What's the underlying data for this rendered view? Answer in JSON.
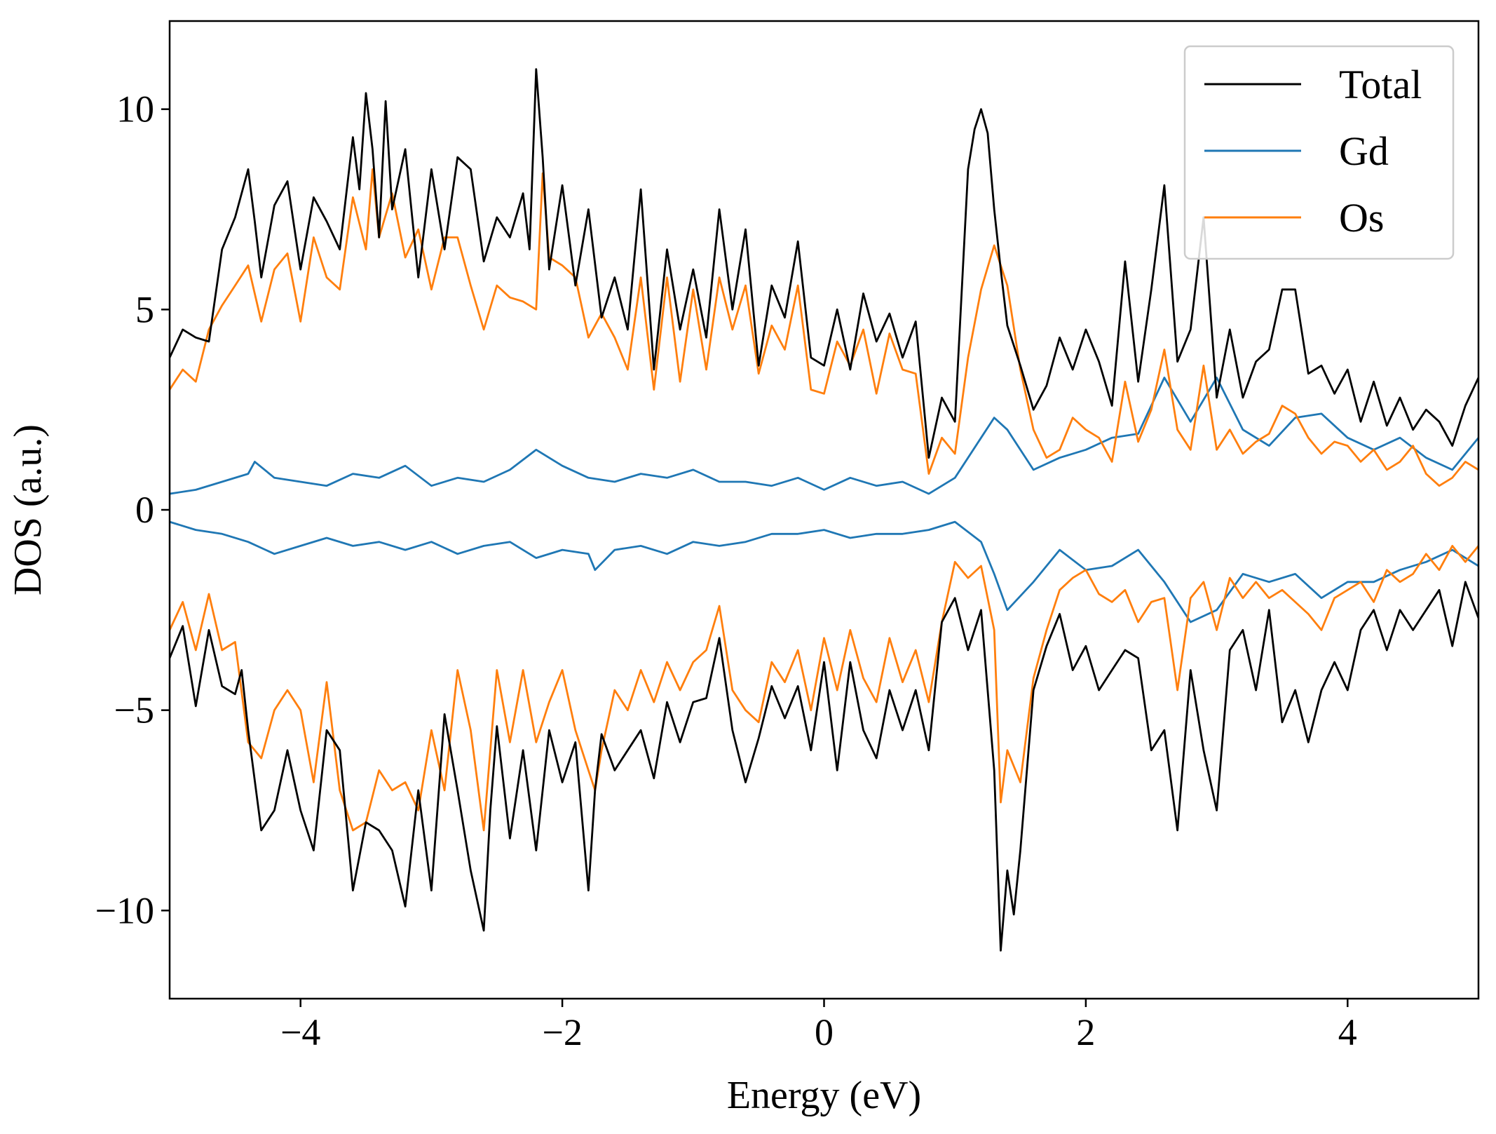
{
  "chart_data": {
    "type": "line",
    "title": "",
    "xlabel": "Energy (eV)",
    "ylabel": "DOS (a.u.)",
    "xlim": [
      -5,
      5
    ],
    "ylim": [
      -12.2,
      12.2
    ],
    "xticks": [
      -4,
      -2,
      0,
      2,
      4
    ],
    "yticks": [
      -10,
      -5,
      0,
      5,
      10
    ],
    "xtick_labels": [
      "−4",
      "−2",
      "0",
      "2",
      "4"
    ],
    "ytick_labels": [
      "−10",
      "−5",
      "0",
      "5",
      "10"
    ],
    "grid": false,
    "legend": {
      "placement": "top-right",
      "entries": [
        "Total",
        "Gd",
        "Os"
      ]
    },
    "series": [
      {
        "name": "Total",
        "color": "#000000",
        "up": {
          "x": [
            -5.0,
            -4.9,
            -4.8,
            -4.7,
            -4.6,
            -4.5,
            -4.4,
            -4.35,
            -4.3,
            -4.2,
            -4.1,
            -4.0,
            -3.9,
            -3.8,
            -3.7,
            -3.6,
            -3.55,
            -3.5,
            -3.45,
            -3.4,
            -3.35,
            -3.3,
            -3.2,
            -3.1,
            -3.0,
            -2.9,
            -2.8,
            -2.7,
            -2.6,
            -2.5,
            -2.4,
            -2.3,
            -2.25,
            -2.2,
            -2.15,
            -2.1,
            -2.0,
            -1.9,
            -1.8,
            -1.7,
            -1.6,
            -1.5,
            -1.4,
            -1.3,
            -1.2,
            -1.1,
            -1.0,
            -0.9,
            -0.8,
            -0.7,
            -0.6,
            -0.5,
            -0.4,
            -0.3,
            -0.2,
            -0.1,
            0.0,
            0.1,
            0.2,
            0.3,
            0.4,
            0.5,
            0.6,
            0.7,
            0.8,
            0.9,
            1.0,
            1.1,
            1.15,
            1.2,
            1.25,
            1.3,
            1.35,
            1.4,
            1.5,
            1.6,
            1.7,
            1.8,
            1.9,
            2.0,
            2.1,
            2.2,
            2.3,
            2.4,
            2.5,
            2.6,
            2.7,
            2.8,
            2.9,
            3.0,
            3.1,
            3.2,
            3.3,
            3.4,
            3.5,
            3.6,
            3.7,
            3.8,
            3.9,
            4.0,
            4.1,
            4.2,
            4.3,
            4.4,
            4.5,
            4.6,
            4.7,
            4.8,
            4.9,
            5.0
          ],
          "y": [
            3.8,
            4.5,
            4.3,
            4.2,
            6.5,
            7.3,
            8.5,
            7.2,
            5.8,
            7.6,
            8.2,
            6.0,
            7.8,
            7.2,
            6.5,
            9.3,
            8.0,
            10.4,
            9.0,
            6.8,
            10.2,
            7.5,
            9.0,
            5.8,
            8.5,
            6.5,
            8.8,
            8.5,
            6.2,
            7.3,
            6.8,
            7.9,
            6.5,
            11.0,
            8.8,
            6.0,
            8.1,
            5.6,
            7.5,
            4.8,
            5.8,
            4.5,
            8.0,
            3.5,
            6.5,
            4.5,
            6.0,
            4.3,
            7.5,
            5.0,
            7.0,
            3.6,
            5.6,
            4.8,
            6.7,
            3.8,
            3.6,
            5.0,
            3.5,
            5.4,
            4.2,
            4.9,
            3.8,
            4.7,
            1.3,
            2.8,
            2.2,
            8.5,
            9.5,
            10.0,
            9.4,
            7.5,
            6.0,
            4.6,
            3.6,
            2.5,
            3.1,
            4.3,
            3.5,
            4.5,
            3.7,
            2.6,
            6.2,
            3.2,
            5.5,
            8.1,
            3.7,
            4.5,
            7.3,
            2.8,
            4.5,
            2.8,
            3.7,
            4.0,
            5.5,
            5.5,
            3.4,
            3.6,
            2.9,
            3.5,
            2.2,
            3.2,
            2.1,
            2.8,
            2.0,
            2.5,
            2.2,
            1.6,
            2.6,
            3.3
          ]
        },
        "down": {
          "x": [
            -5.0,
            -4.9,
            -4.8,
            -4.7,
            -4.6,
            -4.5,
            -4.45,
            -4.4,
            -4.3,
            -4.2,
            -4.1,
            -4.0,
            -3.9,
            -3.8,
            -3.7,
            -3.6,
            -3.5,
            -3.4,
            -3.3,
            -3.2,
            -3.1,
            -3.0,
            -2.9,
            -2.8,
            -2.7,
            -2.6,
            -2.55,
            -2.5,
            -2.4,
            -2.3,
            -2.2,
            -2.1,
            -2.0,
            -1.9,
            -1.8,
            -1.75,
            -1.7,
            -1.6,
            -1.5,
            -1.4,
            -1.3,
            -1.2,
            -1.1,
            -1.0,
            -0.9,
            -0.8,
            -0.7,
            -0.6,
            -0.5,
            -0.4,
            -0.3,
            -0.2,
            -0.1,
            0.0,
            0.1,
            0.2,
            0.3,
            0.4,
            0.5,
            0.6,
            0.7,
            0.8,
            0.9,
            1.0,
            1.1,
            1.2,
            1.3,
            1.35,
            1.4,
            1.45,
            1.5,
            1.6,
            1.7,
            1.8,
            1.9,
            2.0,
            2.1,
            2.2,
            2.3,
            2.4,
            2.5,
            2.6,
            2.7,
            2.8,
            2.9,
            3.0,
            3.1,
            3.2,
            3.3,
            3.4,
            3.5,
            3.6,
            3.7,
            3.8,
            3.9,
            4.0,
            4.1,
            4.2,
            4.3,
            4.4,
            4.5,
            4.6,
            4.7,
            4.8,
            4.9,
            5.0
          ],
          "y": [
            -3.7,
            -2.9,
            -4.9,
            -3.0,
            -4.4,
            -4.6,
            -4.0,
            -5.5,
            -8.0,
            -7.5,
            -6.0,
            -7.5,
            -8.5,
            -5.5,
            -6.0,
            -9.5,
            -7.8,
            -8.0,
            -8.5,
            -9.9,
            -7.0,
            -9.5,
            -5.1,
            -7.0,
            -9.0,
            -10.5,
            -7.5,
            -5.4,
            -8.2,
            -6.0,
            -8.5,
            -5.5,
            -6.8,
            -5.8,
            -9.5,
            -7.0,
            -5.6,
            -6.5,
            -6.0,
            -5.5,
            -6.7,
            -4.8,
            -5.8,
            -4.8,
            -4.7,
            -3.2,
            -5.5,
            -6.8,
            -5.7,
            -4.4,
            -5.2,
            -4.4,
            -6.0,
            -3.8,
            -6.5,
            -3.8,
            -5.5,
            -6.2,
            -4.5,
            -5.5,
            -4.5,
            -6.0,
            -2.8,
            -2.2,
            -3.5,
            -2.5,
            -6.5,
            -11.0,
            -9.0,
            -10.1,
            -8.5,
            -4.5,
            -3.4,
            -2.6,
            -4.0,
            -3.4,
            -4.5,
            -4.0,
            -3.5,
            -3.7,
            -6.0,
            -5.5,
            -8.0,
            -4.0,
            -6.0,
            -7.5,
            -3.5,
            -3.0,
            -4.5,
            -2.5,
            -5.3,
            -4.5,
            -5.8,
            -4.5,
            -3.8,
            -4.5,
            -3.0,
            -2.5,
            -3.5,
            -2.5,
            -3.0,
            -2.5,
            -2.0,
            -3.4,
            -1.8,
            -2.7
          ]
        }
      },
      {
        "name": "Gd",
        "color": "#1f77b4",
        "up": {
          "x": [
            -5.0,
            -4.8,
            -4.6,
            -4.4,
            -4.35,
            -4.2,
            -4.0,
            -3.8,
            -3.6,
            -3.4,
            -3.2,
            -3.0,
            -2.8,
            -2.6,
            -2.4,
            -2.2,
            -2.0,
            -1.8,
            -1.6,
            -1.4,
            -1.2,
            -1.0,
            -0.8,
            -0.6,
            -0.4,
            -0.2,
            0.0,
            0.2,
            0.4,
            0.6,
            0.8,
            1.0,
            1.2,
            1.3,
            1.4,
            1.6,
            1.8,
            2.0,
            2.2,
            2.4,
            2.6,
            2.8,
            3.0,
            3.2,
            3.4,
            3.6,
            3.8,
            4.0,
            4.2,
            4.4,
            4.6,
            4.8,
            5.0
          ],
          "y": [
            0.4,
            0.5,
            0.7,
            0.9,
            1.2,
            0.8,
            0.7,
            0.6,
            0.9,
            0.8,
            1.1,
            0.6,
            0.8,
            0.7,
            1.0,
            1.5,
            1.1,
            0.8,
            0.7,
            0.9,
            0.8,
            1.0,
            0.7,
            0.7,
            0.6,
            0.8,
            0.5,
            0.8,
            0.6,
            0.7,
            0.4,
            0.8,
            1.8,
            2.3,
            2.0,
            1.0,
            1.3,
            1.5,
            1.8,
            1.9,
            3.3,
            2.2,
            3.3,
            2.0,
            1.6,
            2.3,
            2.4,
            1.8,
            1.5,
            1.8,
            1.3,
            1.0,
            1.8
          ]
        },
        "down": {
          "x": [
            -5.0,
            -4.8,
            -4.6,
            -4.4,
            -4.2,
            -4.0,
            -3.8,
            -3.6,
            -3.4,
            -3.2,
            -3.0,
            -2.8,
            -2.6,
            -2.4,
            -2.2,
            -2.0,
            -1.8,
            -1.75,
            -1.6,
            -1.4,
            -1.2,
            -1.0,
            -0.8,
            -0.6,
            -0.4,
            -0.2,
            0.0,
            0.2,
            0.4,
            0.6,
            0.8,
            1.0,
            1.2,
            1.3,
            1.4,
            1.6,
            1.8,
            2.0,
            2.2,
            2.4,
            2.6,
            2.8,
            3.0,
            3.2,
            3.4,
            3.6,
            3.8,
            4.0,
            4.2,
            4.4,
            4.6,
            4.8,
            5.0
          ],
          "y": [
            -0.3,
            -0.5,
            -0.6,
            -0.8,
            -1.1,
            -0.9,
            -0.7,
            -0.9,
            -0.8,
            -1.0,
            -0.8,
            -1.1,
            -0.9,
            -0.8,
            -1.2,
            -1.0,
            -1.1,
            -1.5,
            -1.0,
            -0.9,
            -1.1,
            -0.8,
            -0.9,
            -0.8,
            -0.6,
            -0.6,
            -0.5,
            -0.7,
            -0.6,
            -0.6,
            -0.5,
            -0.3,
            -0.8,
            -1.6,
            -2.5,
            -1.8,
            -1.0,
            -1.5,
            -1.4,
            -1.0,
            -1.8,
            -2.8,
            -2.5,
            -1.6,
            -1.8,
            -1.6,
            -2.2,
            -1.8,
            -1.8,
            -1.5,
            -1.3,
            -1.0,
            -1.4
          ]
        }
      },
      {
        "name": "Os",
        "color": "#ff7f0e",
        "up": {
          "x": [
            -5.0,
            -4.9,
            -4.8,
            -4.7,
            -4.6,
            -4.5,
            -4.4,
            -4.3,
            -4.2,
            -4.1,
            -4.0,
            -3.9,
            -3.8,
            -3.7,
            -3.6,
            -3.5,
            -3.45,
            -3.4,
            -3.3,
            -3.2,
            -3.1,
            -3.0,
            -2.9,
            -2.8,
            -2.7,
            -2.6,
            -2.5,
            -2.4,
            -2.3,
            -2.2,
            -2.15,
            -2.1,
            -2.0,
            -1.9,
            -1.8,
            -1.7,
            -1.6,
            -1.5,
            -1.4,
            -1.3,
            -1.2,
            -1.1,
            -1.0,
            -0.9,
            -0.8,
            -0.7,
            -0.6,
            -0.5,
            -0.4,
            -0.3,
            -0.2,
            -0.1,
            0.0,
            0.1,
            0.2,
            0.3,
            0.4,
            0.5,
            0.6,
            0.7,
            0.8,
            0.9,
            1.0,
            1.1,
            1.2,
            1.3,
            1.4,
            1.5,
            1.6,
            1.7,
            1.8,
            1.9,
            2.0,
            2.1,
            2.2,
            2.3,
            2.4,
            2.5,
            2.6,
            2.7,
            2.8,
            2.9,
            3.0,
            3.1,
            3.2,
            3.3,
            3.4,
            3.5,
            3.6,
            3.7,
            3.8,
            3.9,
            4.0,
            4.1,
            4.2,
            4.3,
            4.4,
            4.5,
            4.6,
            4.7,
            4.8,
            4.9,
            5.0
          ],
          "y": [
            3.0,
            3.5,
            3.2,
            4.5,
            5.1,
            5.6,
            6.1,
            4.7,
            6.0,
            6.4,
            4.7,
            6.8,
            5.8,
            5.5,
            7.8,
            6.5,
            8.5,
            6.8,
            7.9,
            6.3,
            7.0,
            5.5,
            6.8,
            6.8,
            5.6,
            4.5,
            5.6,
            5.3,
            5.2,
            5.0,
            8.4,
            6.3,
            6.1,
            5.8,
            4.3,
            4.9,
            4.3,
            3.5,
            5.8,
            3.0,
            5.8,
            3.2,
            5.5,
            3.5,
            5.8,
            4.5,
            5.6,
            3.4,
            4.6,
            4.0,
            5.6,
            3.0,
            2.9,
            4.2,
            3.6,
            4.5,
            2.9,
            4.4,
            3.5,
            3.4,
            0.9,
            1.8,
            1.4,
            3.8,
            5.5,
            6.6,
            5.6,
            3.5,
            2.0,
            1.3,
            1.5,
            2.3,
            2.0,
            1.8,
            1.2,
            3.2,
            1.7,
            2.5,
            4.0,
            2.0,
            1.5,
            3.6,
            1.5,
            2.0,
            1.4,
            1.7,
            1.9,
            2.6,
            2.4,
            1.8,
            1.4,
            1.7,
            1.6,
            1.2,
            1.5,
            1.0,
            1.2,
            1.6,
            0.9,
            0.6,
            0.8,
            1.2,
            1.0
          ]
        },
        "down": {
          "x": [
            -5.0,
            -4.9,
            -4.8,
            -4.7,
            -4.6,
            -4.5,
            -4.4,
            -4.3,
            -4.2,
            -4.1,
            -4.0,
            -3.9,
            -3.8,
            -3.7,
            -3.6,
            -3.5,
            -3.4,
            -3.3,
            -3.2,
            -3.1,
            -3.0,
            -2.9,
            -2.8,
            -2.7,
            -2.6,
            -2.5,
            -2.4,
            -2.3,
            -2.2,
            -2.1,
            -2.0,
            -1.9,
            -1.8,
            -1.75,
            -1.7,
            -1.6,
            -1.5,
            -1.4,
            -1.3,
            -1.2,
            -1.1,
            -1.0,
            -0.9,
            -0.8,
            -0.7,
            -0.6,
            -0.5,
            -0.4,
            -0.3,
            -0.2,
            -0.1,
            0.0,
            0.1,
            0.2,
            0.3,
            0.4,
            0.5,
            0.6,
            0.7,
            0.8,
            0.9,
            1.0,
            1.1,
            1.2,
            1.3,
            1.35,
            1.4,
            1.5,
            1.6,
            1.7,
            1.8,
            1.9,
            2.0,
            2.1,
            2.2,
            2.3,
            2.4,
            2.5,
            2.6,
            2.7,
            2.8,
            2.9,
            3.0,
            3.1,
            3.2,
            3.3,
            3.4,
            3.5,
            3.6,
            3.7,
            3.8,
            3.9,
            4.0,
            4.1,
            4.2,
            4.3,
            4.4,
            4.5,
            4.6,
            4.7,
            4.8,
            4.9,
            5.0
          ],
          "y": [
            -3.0,
            -2.3,
            -3.5,
            -2.1,
            -3.5,
            -3.3,
            -5.8,
            -6.2,
            -5.0,
            -4.5,
            -5.0,
            -6.8,
            -4.3,
            -7.0,
            -8.0,
            -7.8,
            -6.5,
            -7.0,
            -6.8,
            -7.5,
            -5.5,
            -7.0,
            -4.0,
            -5.5,
            -8.0,
            -4.0,
            -5.8,
            -4.0,
            -5.8,
            -4.8,
            -4.0,
            -5.5,
            -6.5,
            -7.0,
            -6.0,
            -4.5,
            -5.0,
            -4.0,
            -4.8,
            -3.8,
            -4.5,
            -3.8,
            -3.5,
            -2.4,
            -4.5,
            -5.0,
            -5.3,
            -3.8,
            -4.3,
            -3.5,
            -5.0,
            -3.2,
            -4.5,
            -3.0,
            -4.2,
            -4.8,
            -3.2,
            -4.3,
            -3.5,
            -4.8,
            -2.8,
            -1.3,
            -1.7,
            -1.4,
            -3.0,
            -7.3,
            -6.0,
            -6.8,
            -4.2,
            -3.0,
            -2.0,
            -1.7,
            -1.5,
            -2.1,
            -2.3,
            -2.0,
            -2.8,
            -2.3,
            -2.2,
            -4.5,
            -2.2,
            -1.8,
            -3.0,
            -1.7,
            -2.2,
            -1.8,
            -2.2,
            -2.0,
            -2.3,
            -2.6,
            -3.0,
            -2.2,
            -2.0,
            -1.8,
            -2.3,
            -1.5,
            -1.8,
            -1.6,
            -1.1,
            -1.5,
            -0.9,
            -1.3,
            -0.9
          ]
        }
      }
    ]
  }
}
